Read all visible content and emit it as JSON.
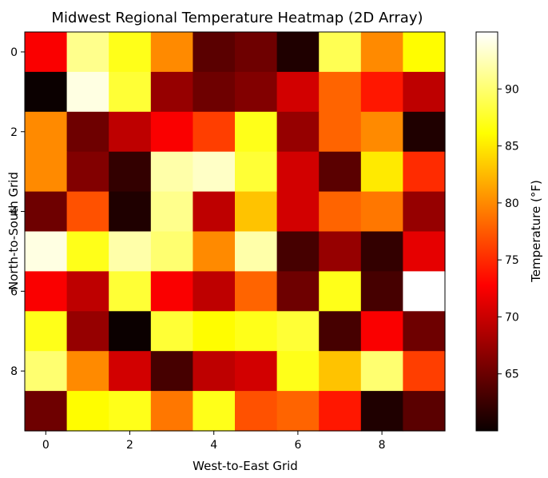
{
  "chart_data": {
    "type": "heatmap",
    "title": "Midwest Regional Temperature Heatmap (2D Array)",
    "xlabel": "West-to-East Grid",
    "ylabel": "North-to-South Grid",
    "colorbar_label": "Temperature (°F)",
    "colormap": "hot",
    "x_ticks": [
      0,
      2,
      4,
      6,
      8
    ],
    "y_ticks": [
      0,
      2,
      4,
      6,
      8
    ],
    "colorbar_ticks": [
      65,
      70,
      75,
      80,
      85,
      90
    ],
    "value_range": [
      60,
      95
    ],
    "grid": false,
    "values": [
      [
        72,
        91,
        87,
        80,
        64,
        65,
        61,
        89,
        80,
        86
      ],
      [
        60,
        94,
        88,
        67,
        65,
        66,
        70,
        78,
        74,
        69
      ],
      [
        80,
        65,
        69,
        72,
        76,
        87,
        67,
        78,
        80,
        61
      ],
      [
        80,
        66,
        62,
        92,
        93,
        88,
        70,
        64,
        85,
        75
      ],
      [
        65,
        77,
        61,
        91,
        69,
        83,
        70,
        78,
        79,
        67
      ],
      [
        94,
        87,
        92,
        90,
        80,
        92,
        63,
        67,
        62,
        71
      ],
      [
        72,
        69,
        88,
        72,
        69,
        78,
        65,
        87,
        63,
        95
      ],
      [
        87,
        67,
        60,
        88,
        86,
        87,
        88,
        63,
        72,
        65
      ],
      [
        90,
        80,
        70,
        63,
        69,
        70,
        87,
        83,
        90,
        76
      ],
      [
        65,
        86,
        87,
        79,
        87,
        77,
        78,
        74,
        61,
        64
      ]
    ]
  }
}
